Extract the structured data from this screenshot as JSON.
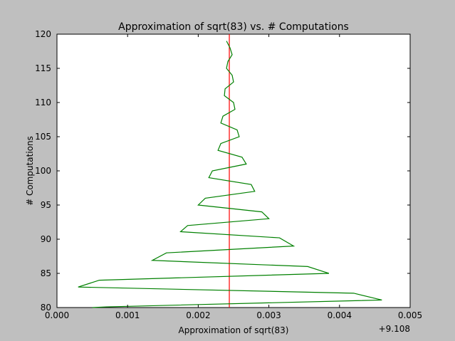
{
  "chart_data": {
    "type": "line",
    "title": "Approximation of sqrt(83) vs. # Computations",
    "xlabel": "Approximation of sqrt(83)",
    "ylabel": "# Computations",
    "x_offset_label": "+9.108",
    "xlim": [
      0.0,
      0.005
    ],
    "ylim": [
      80,
      120
    ],
    "xticks": [
      "0.000",
      "0.001",
      "0.002",
      "0.003",
      "0.004",
      "0.005"
    ],
    "yticks": [
      "80",
      "85",
      "90",
      "95",
      "100",
      "105",
      "110",
      "115",
      "120"
    ],
    "grid": false,
    "reference_line": {
      "x": 0.00244,
      "color": "#ff0000"
    },
    "series": [
      {
        "color": "#008000",
        "points": [
          [
            0.0005,
            80
          ],
          [
            0.0007,
            80.1
          ],
          [
            0.0046,
            81.1
          ],
          [
            0.0042,
            82.1
          ],
          [
            0.0003,
            83
          ],
          [
            0.0006,
            84
          ],
          [
            0.00385,
            85
          ],
          [
            0.00355,
            86
          ],
          [
            0.00135,
            86.9
          ],
          [
            0.00155,
            88
          ],
          [
            0.00335,
            89
          ],
          [
            0.00315,
            90.2
          ],
          [
            0.00175,
            91.1
          ],
          [
            0.00185,
            92
          ],
          [
            0.003,
            93
          ],
          [
            0.0029,
            94
          ],
          [
            0.002,
            95
          ],
          [
            0.0021,
            96
          ],
          [
            0.0028,
            97
          ],
          [
            0.00275,
            98
          ],
          [
            0.00215,
            99
          ],
          [
            0.0022,
            100
          ],
          [
            0.00268,
            101
          ],
          [
            0.00262,
            102
          ],
          [
            0.00228,
            103
          ],
          [
            0.00232,
            104
          ],
          [
            0.00258,
            105
          ],
          [
            0.00255,
            106
          ],
          [
            0.00232,
            107
          ],
          [
            0.00235,
            108
          ],
          [
            0.00252,
            109
          ],
          [
            0.0025,
            110
          ],
          [
            0.00237,
            111
          ],
          [
            0.00238,
            112
          ],
          [
            0.0025,
            113
          ],
          [
            0.00248,
            114
          ],
          [
            0.0024,
            115
          ],
          [
            0.00242,
            116
          ],
          [
            0.00248,
            117
          ],
          [
            0.00245,
            118
          ],
          [
            0.0024,
            119
          ]
        ]
      }
    ]
  }
}
